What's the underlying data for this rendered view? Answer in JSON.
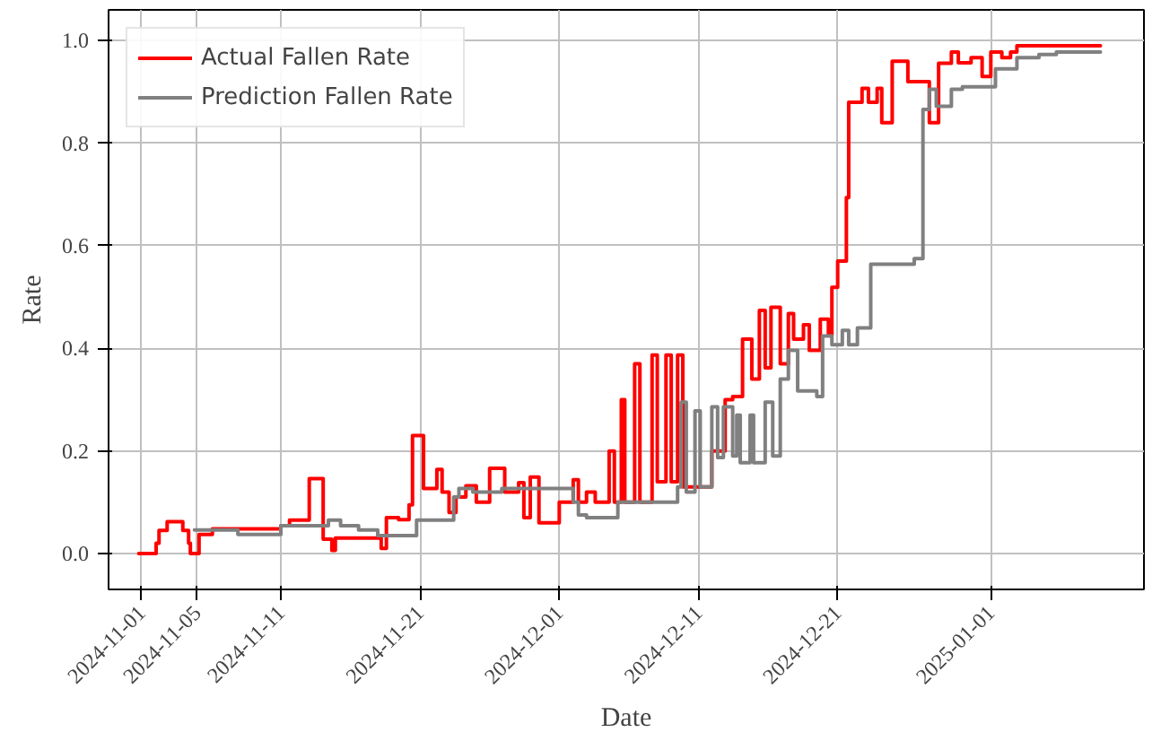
{
  "chart_data": {
    "type": "step",
    "xlabel": "Date",
    "ylabel": "Rate",
    "legend": "top left",
    "grid": true,
    "line_style": "solid",
    "xlim": [
      "2024-10-29T15:00",
      "2025-01-12"
    ],
    "ylim": [
      -0.07,
      1.06
    ],
    "xticks": [
      "2024-11-01",
      "2024-11-05",
      "2024-11-11",
      "2024-11-21",
      "2024-12-01",
      "2024-12-11",
      "2024-12-21",
      "2025-01-01"
    ],
    "yticks": [
      {
        "value": 0,
        "label": "0.0"
      },
      {
        "value": 0.2,
        "label": "0.2"
      },
      {
        "value": 0.4,
        "label": "0.4"
      },
      {
        "value": 0.6,
        "label": "0.6"
      },
      {
        "value": 0.8,
        "label": "0.8"
      },
      {
        "value": 1.0,
        "label": "1.0"
      }
    ],
    "series": [
      {
        "name": "Actual Fallen Rate",
        "color": "#ff0000",
        "x": [
          "2024-10-31T19:00",
          "2024-11-02T01:00",
          "2024-11-02T06:00",
          "2024-11-02T20:00",
          "2024-11-03T23:00",
          "2024-11-04T09:00",
          "2024-11-04T12:00",
          "2024-11-05T03:00",
          "2024-11-06T02:00",
          "2024-11-11T00:00",
          "2024-11-11T15:00",
          "2024-11-13T01:00",
          "2024-11-14T01:00",
          "2024-11-14T16:00",
          "2024-11-14T22:00",
          "2024-11-18T05:00",
          "2024-11-18T14:00",
          "2024-11-19T11:00",
          "2024-11-20T05:00",
          "2024-11-20T11:00",
          "2024-11-21T06:00",
          "2024-11-22T05:00",
          "2024-11-22T14:00",
          "2024-11-23T02:00",
          "2024-11-23T14:00",
          "2024-11-24T07:00",
          "2024-11-25T01:00",
          "2024-11-26T00:00",
          "2024-11-27T02:00",
          "2024-11-28T02:00",
          "2024-11-28T11:00",
          "2024-11-28T22:00",
          "2024-11-29T13:00",
          "2024-12-01T00:00",
          "2024-12-02T00:00",
          "2024-12-02T09:00",
          "2024-12-02T23:00",
          "2024-12-03T14:00",
          "2024-12-04T14:00",
          "2024-12-04T23:00",
          "2024-12-05T11:00",
          "2024-12-05T17:00",
          "2024-12-06T10:00",
          "2024-12-06T19:00",
          "2024-12-07T16:00",
          "2024-12-08T01:00",
          "2024-12-08T16:00",
          "2024-12-09T01:00",
          "2024-12-09T12:00",
          "2024-12-09T21:00",
          "2024-12-10T18:00",
          "2024-12-11T23:00",
          "2024-12-12T22:00",
          "2024-12-13T11:00",
          "2024-12-14T04:00",
          "2024-12-14T20:00",
          "2024-12-15T09:00",
          "2024-12-15T19:00",
          "2024-12-16T05:00",
          "2024-12-16T21:00",
          "2024-12-17T11:00",
          "2024-12-17T20:00",
          "2024-12-18T13:00",
          "2024-12-18T23:00",
          "2024-12-19T18:00",
          "2024-12-20T08:00",
          "2024-12-20T14:00",
          "2024-12-21T00:00",
          "2024-12-21T15:00",
          "2024-12-21T19:00",
          "2024-12-22T18:00",
          "2024-12-23T05:00",
          "2024-12-23T20:00",
          "2024-12-24T04:00",
          "2024-12-24T22:00",
          "2024-12-26T01:00",
          "2024-12-27T14:00",
          "2024-12-28T06:00",
          "2024-12-29T04:00",
          "2024-12-29T16:00",
          "2024-12-30T14:00",
          "2024-12-31T09:00",
          "2025-01-01T00:00",
          "2025-01-01T19:00",
          "2025-01-02T10:00",
          "2025-01-02T21:00",
          "2025-01-08T21:00"
        ],
        "values": [
          0,
          0.02,
          0.045,
          0.062,
          0.045,
          0.02,
          0,
          0.037,
          0.048,
          0.054,
          0.065,
          0.146,
          0.028,
          0.006,
          0.03,
          0.01,
          0.07,
          0.066,
          0.095,
          0.23,
          0.127,
          0.164,
          0.12,
          0.08,
          0.11,
          0.132,
          0.1,
          0.166,
          0.12,
          0.138,
          0.07,
          0.149,
          0.06,
          0.1,
          0.144,
          0.1,
          0.12,
          0.1,
          0.2,
          0.1,
          0.3,
          0.1,
          0.37,
          0.1,
          0.387,
          0.14,
          0.387,
          0.14,
          0.387,
          0.13,
          0.13,
          0.2,
          0.3,
          0.306,
          0.418,
          0.34,
          0.474,
          0.362,
          0.48,
          0.37,
          0.468,
          0.418,
          0.446,
          0.396,
          0.457,
          0.425,
          0.519,
          0.57,
          0.694,
          0.88,
          0.907,
          0.88,
          0.907,
          0.84,
          0.96,
          0.92,
          0.84,
          0.956,
          0.978,
          0.957,
          0.967,
          0.93,
          0.978,
          0.967,
          0.978,
          0.99,
          0.99
        ]
      },
      {
        "name": "Prediction Fallen Rate",
        "color": "#808080",
        "x": [
          "2024-11-04T19:00",
          "2024-11-07T22:00",
          "2024-11-11T00:00",
          "2024-11-14T10:00",
          "2024-11-15T07:00",
          "2024-11-16T14:00",
          "2024-11-17T23:00",
          "2024-11-20T18:00",
          "2024-11-23T10:00",
          "2024-11-23T19:00",
          "2024-11-24T19:00",
          "2024-11-26T21:00",
          "2024-12-02T00:00",
          "2024-12-02T09:00",
          "2024-12-02T23:00",
          "2024-12-05T05:00",
          "2024-12-09T12:00",
          "2024-12-09T18:00",
          "2024-12-10T03:00",
          "2024-12-10T18:00",
          "2024-12-11T03:00",
          "2024-12-11T23:00",
          "2024-12-12T09:00",
          "2024-12-12T19:00",
          "2024-12-13T11:00",
          "2024-12-13T18:00",
          "2024-12-14T00:00",
          "2024-12-14T17:00",
          "2024-12-14T23:00",
          "2024-12-15T19:00",
          "2024-12-16T08:00",
          "2024-12-16T21:00",
          "2024-12-17T11:00",
          "2024-12-18T03:00",
          "2024-12-19T12:00",
          "2024-12-19T22:00",
          "2024-12-20T14:00",
          "2024-12-21T08:00",
          "2024-12-21T19:00",
          "2024-12-22T10:00",
          "2024-12-23T09:00",
          "2024-12-26T12:00",
          "2024-12-27T03:00",
          "2024-12-27T14:00",
          "2024-12-28T02:00",
          "2024-12-29T04:00",
          "2024-12-29T23:00",
          "2025-01-01T08:00",
          "2025-01-02T21:00",
          "2025-01-04T11:00",
          "2025-01-05T17:00",
          "2025-01-08T21:00"
        ],
        "values": [
          0.046,
          0.037,
          0.054,
          0.065,
          0.054,
          0.046,
          0.035,
          0.065,
          0.11,
          0.127,
          0.12,
          0.127,
          0.1,
          0.075,
          0.07,
          0.1,
          0.13,
          0.295,
          0.12,
          0.278,
          0.13,
          0.286,
          0.187,
          0.286,
          0.19,
          0.27,
          0.177,
          0.27,
          0.177,
          0.295,
          0.19,
          0.34,
          0.396,
          0.317,
          0.306,
          0.424,
          0.407,
          0.435,
          0.407,
          0.44,
          0.564,
          0.575,
          0.866,
          0.905,
          0.872,
          0.905,
          0.91,
          0.945,
          0.967,
          0.973,
          0.978,
          0.978
        ]
      }
    ]
  }
}
